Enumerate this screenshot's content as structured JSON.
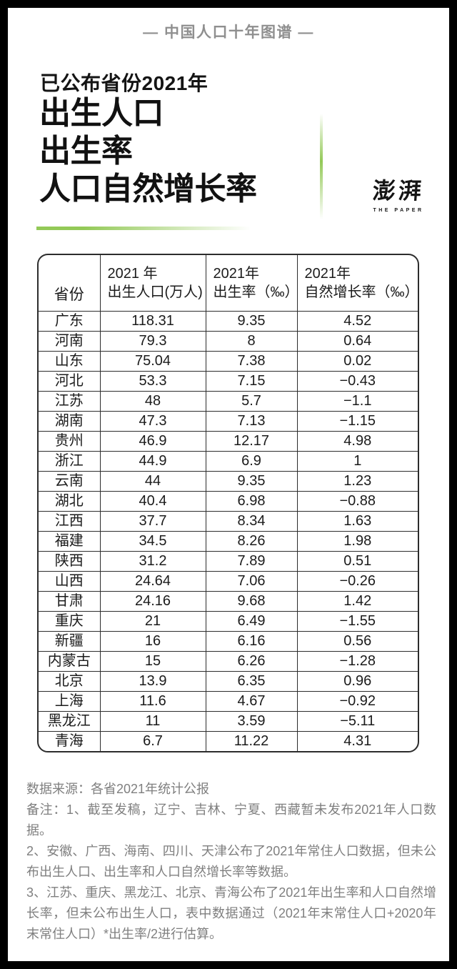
{
  "page": {
    "frame_label": "—  中国人口十年图谱  —",
    "title_prefix": "已公布省份2021年",
    "title_lines": [
      "出生人口",
      "出生率",
      "人口自然增长率"
    ],
    "logo": {
      "cn": "澎湃",
      "en": "THE PAPER"
    }
  },
  "table": {
    "header": {
      "province": "省份",
      "births_line1": "2021 年",
      "births_line2": "出生人口(万人)",
      "birth_rate_line1": "2021年",
      "birth_rate_line2": "出生率（‰）",
      "growth_line1": "2021年",
      "growth_line2": "自然增长率（‰）"
    },
    "rows": [
      [
        "广东",
        "118.31",
        "9.35",
        "4.52"
      ],
      [
        "河南",
        "79.3",
        "8",
        "0.64"
      ],
      [
        "山东",
        "75.04",
        "7.38",
        "0.02"
      ],
      [
        "河北",
        "53.3",
        "7.15",
        "−0.43"
      ],
      [
        "江苏",
        "48",
        "5.7",
        "−1.1"
      ],
      [
        "湖南",
        "47.3",
        "7.13",
        "−1.15"
      ],
      [
        "贵州",
        "46.9",
        "12.17",
        "4.98"
      ],
      [
        "浙江",
        "44.9",
        "6.9",
        "1"
      ],
      [
        "云南",
        "44",
        "9.35",
        "1.23"
      ],
      [
        "湖北",
        "40.4",
        "6.98",
        "−0.88"
      ],
      [
        "江西",
        "37.7",
        "8.34",
        "1.63"
      ],
      [
        "福建",
        "34.5",
        "8.26",
        "1.98"
      ],
      [
        "陕西",
        "31.2",
        "7.89",
        "0.51"
      ],
      [
        "山西",
        "24.64",
        "7.06",
        "−0.26"
      ],
      [
        "甘肃",
        "24.16",
        "9.68",
        "1.42"
      ],
      [
        "重庆",
        "21",
        "6.49",
        "−1.55"
      ],
      [
        "新疆",
        "16",
        "6.16",
        "0.56"
      ],
      [
        "内蒙古",
        "15",
        "6.26",
        "−1.28"
      ],
      [
        "北京",
        "13.9",
        "6.35",
        "0.96"
      ],
      [
        "上海",
        "11.6",
        "4.67",
        "−0.92"
      ],
      [
        "黑龙江",
        "11",
        "3.59",
        "−5.11"
      ],
      [
        "青海",
        "6.7",
        "11.22",
        "4.31"
      ]
    ]
  },
  "notes": [
    "数据来源：各省2021年统计公报",
    "备注：1、截至发稿，辽宁、吉林、宁夏、西藏暂未发布2021年人口数据。",
    "2、安徽、广西、海南、四川、天津公布了2021年常住人口数据，但未公布出生人口、出生率和人口自然增长率等数据。",
    "3、江苏、重庆、黑龙江、北京、青海公布了2021年出生率和人口自然增长率，但未公布出生人口，表中数据通过（2021年末常住人口+2020年末常住人口）*出生率/2进行估算。"
  ],
  "colors": {
    "accent_green": "#93c957",
    "frame_black": "#000000",
    "top_label_gray": "#8f8f8f",
    "note_gray": "#7f7f7f"
  },
  "chart_data": {
    "type": "table",
    "title": "已公布省份2021年出生人口、出生率、人口自然增长率",
    "columns": [
      "省份",
      "2021年出生人口(万人)",
      "2021年出生率（‰）",
      "2021年自然增长率（‰）"
    ],
    "categories": [
      "广东",
      "河南",
      "山东",
      "河北",
      "江苏",
      "湖南",
      "贵州",
      "浙江",
      "云南",
      "湖北",
      "江西",
      "福建",
      "陕西",
      "山西",
      "甘肃",
      "重庆",
      "新疆",
      "内蒙古",
      "北京",
      "上海",
      "黑龙江",
      "青海"
    ],
    "series": [
      {
        "name": "2021年出生人口(万人)",
        "values": [
          118.31,
          79.3,
          75.04,
          53.3,
          48,
          47.3,
          46.9,
          44.9,
          44,
          40.4,
          37.7,
          34.5,
          31.2,
          24.64,
          24.16,
          21,
          16,
          15,
          13.9,
          11.6,
          11,
          6.7
        ]
      },
      {
        "name": "2021年出生率（‰）",
        "values": [
          9.35,
          8,
          7.38,
          7.15,
          5.7,
          7.13,
          12.17,
          6.9,
          9.35,
          6.98,
          8.34,
          8.26,
          7.89,
          7.06,
          9.68,
          6.49,
          6.16,
          6.26,
          6.35,
          4.67,
          3.59,
          11.22
        ]
      },
      {
        "name": "2021年自然增长率（‰）",
        "values": [
          4.52,
          0.64,
          0.02,
          -0.43,
          -1.1,
          -1.15,
          4.98,
          1,
          1.23,
          -0.88,
          1.63,
          1.98,
          0.51,
          -0.26,
          1.42,
          -1.55,
          0.56,
          -1.28,
          0.96,
          -0.92,
          -5.11,
          4.31
        ]
      }
    ],
    "source": "各省2021年统计公报"
  }
}
